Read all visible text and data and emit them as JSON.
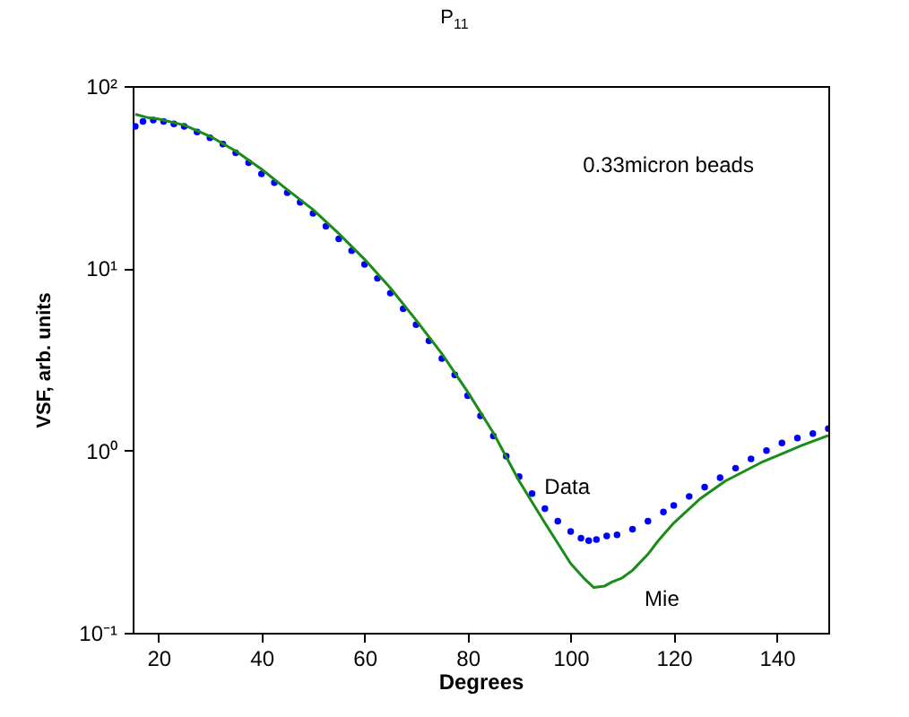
{
  "chart_data": {
    "type": "line",
    "title": "P$_{11}$",
    "xlabel": "Degrees",
    "ylabel": "VSF, arb. units",
    "xlim": [
      15,
      150
    ],
    "xticks": [
      20,
      40,
      60,
      80,
      100,
      120,
      140
    ],
    "ylim": [
      0.1,
      100
    ],
    "yticks": [
      {
        "value": 0.1,
        "label": "10⁻¹"
      },
      {
        "value": 1,
        "label": "10⁰"
      },
      {
        "value": 10,
        "label": "10¹"
      },
      {
        "value": 100,
        "label": "10²"
      }
    ],
    "log": "y",
    "grid": false,
    "legend": false,
    "series": [
      {
        "name": "Data",
        "type": "scatter",
        "marker": "circle",
        "color": "#0000ff",
        "x": [
          15.5,
          17,
          19,
          21,
          23,
          25,
          27.5,
          30,
          32.5,
          35,
          37.5,
          40,
          42.5,
          45,
          47.5,
          50,
          52.5,
          55,
          57.5,
          60,
          62.5,
          65,
          67.5,
          70,
          72.5,
          75,
          77.5,
          80,
          82.5,
          85,
          87.5,
          90,
          92.5,
          95,
          97.5,
          100,
          102,
          103.5,
          105,
          107,
          109,
          112,
          115,
          118,
          120,
          123,
          126,
          129,
          132,
          135,
          138,
          141,
          144,
          147,
          150
        ],
        "values": [
          60,
          64,
          65,
          64,
          62,
          60,
          56,
          52,
          48,
          43,
          38,
          33,
          29.5,
          26,
          23,
          20,
          17,
          14.5,
          12.5,
          10.5,
          8.8,
          7.3,
          6,
          4.9,
          4,
          3.2,
          2.6,
          2.0,
          1.55,
          1.2,
          0.93,
          0.72,
          0.58,
          0.48,
          0.41,
          0.36,
          0.33,
          0.32,
          0.325,
          0.34,
          0.345,
          0.37,
          0.41,
          0.46,
          0.5,
          0.56,
          0.63,
          0.71,
          0.8,
          0.9,
          1.0,
          1.1,
          1.17,
          1.24,
          1.32
        ]
      },
      {
        "name": "Mie",
        "color": "#1a8c1a",
        "x": [
          15.5,
          18,
          20,
          25,
          30,
          35,
          40,
          45,
          50,
          55,
          60,
          65,
          70,
          75,
          80,
          85,
          90,
          95,
          100,
          102.5,
          104.5,
          106.5,
          108,
          110,
          112,
          115,
          117,
          120,
          125,
          130,
          137,
          145,
          150
        ],
        "values": [
          70,
          67,
          66,
          61,
          53,
          44,
          35,
          27,
          21,
          15.5,
          11.2,
          7.8,
          5.2,
          3.4,
          2.1,
          1.25,
          0.68,
          0.4,
          0.24,
          0.2,
          0.177,
          0.18,
          0.19,
          0.2,
          0.22,
          0.27,
          0.32,
          0.4,
          0.54,
          0.68,
          0.86,
          1.07,
          1.21
        ]
      }
    ],
    "annotations": [
      "0.33micron beads"
    ]
  }
}
